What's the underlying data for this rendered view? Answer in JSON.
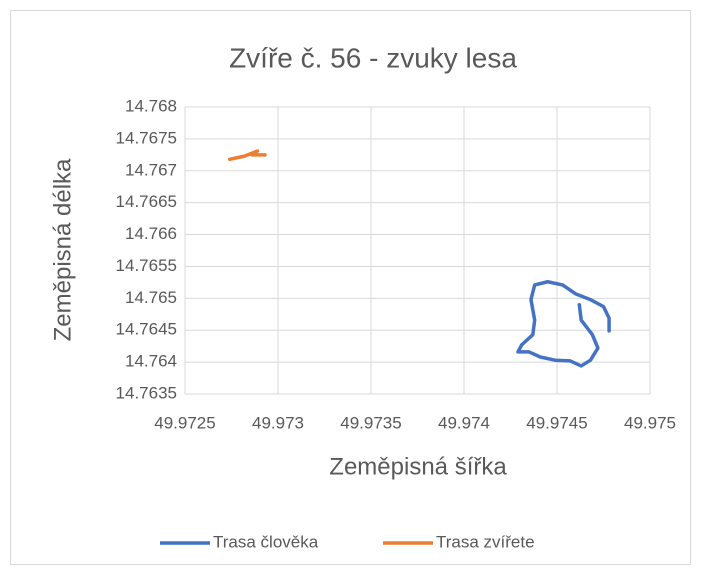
{
  "chart_data": {
    "type": "line",
    "title": "Zvíře č. 56 - zvuky lesa",
    "x_label": "Zeměpisná šířka",
    "y_label": "Zeměpisná délka",
    "xlim": [
      49.9725,
      49.975
    ],
    "xticks": [
      49.9725,
      49.973,
      49.9735,
      49.974,
      49.9745,
      49.975
    ],
    "ylim": [
      14.7635,
      14.768
    ],
    "yticks": [
      14.7635,
      14.764,
      14.7645,
      14.765,
      14.7655,
      14.766,
      14.7665,
      14.767,
      14.7675,
      14.768
    ],
    "grid": true,
    "legend": "bottom",
    "series": [
      {
        "name": "Trasa člověka",
        "color": "#4472c4",
        "x": [
          49.97462,
          49.97463,
          49.97469,
          49.97472,
          49.97468,
          49.97463,
          49.97457,
          49.97449,
          49.97441,
          49.97435,
          49.97429,
          49.97431,
          49.97437,
          49.97438,
          49.97436,
          49.97438,
          49.97445,
          49.97453,
          49.9746,
          49.97468,
          49.97475,
          49.97478,
          49.97478
        ],
        "values": [
          14.7649,
          14.76466,
          14.76443,
          14.76422,
          14.76403,
          14.76394,
          14.76402,
          14.76403,
          14.76408,
          14.76416,
          14.76416,
          14.76427,
          14.76443,
          14.76466,
          14.76498,
          14.76521,
          14.76526,
          14.76521,
          14.76507,
          14.76498,
          14.76487,
          14.76469,
          14.76449
        ]
      },
      {
        "name": "Trasa zvířete",
        "color": "#ed7d31",
        "x": [
          49.97274,
          49.97282,
          49.97289,
          49.97286,
          49.97293
        ],
        "values": [
          14.76718,
          14.76723,
          14.76731,
          14.76725,
          14.76725
        ]
      }
    ]
  }
}
